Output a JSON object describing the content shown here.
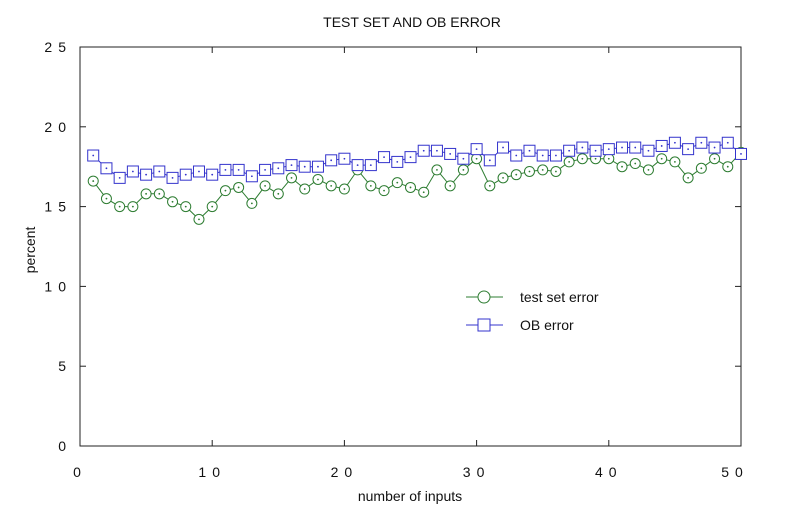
{
  "chart_data": {
    "type": "line",
    "title": "TEST SET AND OB ERROR",
    "xlabel": "number of inputs",
    "ylabel": "percent",
    "xlim": [
      0,
      50
    ],
    "ylim": [
      0,
      25
    ],
    "x_ticks": [
      0,
      10,
      20,
      30,
      40,
      50
    ],
    "y_ticks": [
      0,
      5,
      10,
      15,
      20,
      25
    ],
    "x_tick_labels": [
      "0",
      "10",
      "20",
      "30",
      "40",
      "50"
    ],
    "y_tick_labels": [
      "0",
      "5",
      "10",
      "15",
      "20",
      "25"
    ],
    "grid": false,
    "legend_position": "right-middle",
    "x": [
      1,
      2,
      3,
      4,
      5,
      6,
      7,
      8,
      9,
      10,
      11,
      12,
      13,
      14,
      15,
      16,
      17,
      18,
      19,
      20,
      21,
      22,
      23,
      24,
      25,
      26,
      27,
      28,
      29,
      30,
      31,
      32,
      33,
      34,
      35,
      36,
      37,
      38,
      39,
      40,
      41,
      42,
      43,
      44,
      45,
      46,
      47,
      48,
      49,
      50
    ],
    "series": [
      {
        "name": "test set error",
        "color": "#2e7d32",
        "marker": "circle",
        "values": [
          16.6,
          15.5,
          15.0,
          15.0,
          15.8,
          15.8,
          15.3,
          15.0,
          14.2,
          15.0,
          16.0,
          16.2,
          15.2,
          16.3,
          15.8,
          16.8,
          16.1,
          16.7,
          16.3,
          16.1,
          17.3,
          16.3,
          16.0,
          16.5,
          16.2,
          15.9,
          17.3,
          16.3,
          17.3,
          18.0,
          16.3,
          16.8,
          17.0,
          17.2,
          17.3,
          17.2,
          17.8,
          18.0,
          18.0,
          18.0,
          17.5,
          17.7,
          17.3,
          18.0,
          17.8,
          16.8,
          17.4,
          18.0,
          17.5,
          18.4
        ]
      },
      {
        "name": "OB error",
        "color": "#3333cc",
        "marker": "square",
        "values": [
          18.2,
          17.4,
          16.8,
          17.2,
          17.0,
          17.2,
          16.8,
          17.0,
          17.2,
          17.0,
          17.3,
          17.3,
          16.9,
          17.3,
          17.4,
          17.6,
          17.5,
          17.5,
          17.9,
          18.0,
          17.6,
          17.6,
          18.1,
          17.8,
          18.1,
          18.5,
          18.5,
          18.3,
          18.0,
          18.6,
          17.9,
          18.7,
          18.2,
          18.5,
          18.2,
          18.2,
          18.5,
          18.7,
          18.5,
          18.6,
          18.7,
          18.7,
          18.5,
          18.8,
          19.0,
          18.6,
          19.0,
          18.7,
          19.0,
          18.3
        ]
      }
    ]
  }
}
